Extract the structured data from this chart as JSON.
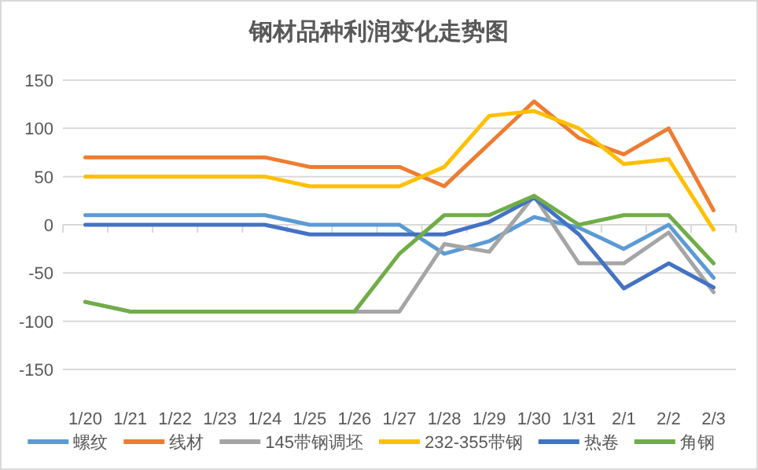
{
  "chart_data": {
    "type": "line",
    "title": "钢材品种利润变化走势图",
    "categories": [
      "1/20",
      "1/21",
      "1/22",
      "1/23",
      "1/24",
      "1/25",
      "1/26",
      "1/27",
      "1/28",
      "1/29",
      "1/30",
      "1/31",
      "2/1",
      "2/2",
      "2/3"
    ],
    "series": [
      {
        "name": "螺纹",
        "color": "#5b9bd5",
        "values": [
          10,
          10,
          10,
          10,
          10,
          0,
          0,
          0,
          -30,
          -17,
          8,
          -3,
          -25,
          0,
          -55
        ]
      },
      {
        "name": "线材",
        "color": "#ed7d31",
        "values": [
          70,
          70,
          70,
          70,
          70,
          60,
          60,
          60,
          40,
          84,
          128,
          90,
          73,
          100,
          15
        ]
      },
      {
        "name": "145带钢调坯",
        "color": "#a5a5a5",
        "values": [
          -80,
          -90,
          null,
          null,
          null,
          null,
          -90,
          -90,
          -20,
          -28,
          30,
          -40,
          -40,
          -8,
          -70
        ]
      },
      {
        "name": "232-355带钢",
        "color": "#ffc000",
        "values": [
          50,
          50,
          50,
          50,
          50,
          40,
          40,
          40,
          60,
          113,
          118,
          100,
          63,
          68,
          -5
        ]
      },
      {
        "name": "热卷",
        "color": "#4472c4",
        "values": [
          0,
          0,
          0,
          0,
          0,
          -10,
          -10,
          -10,
          -10,
          3,
          28,
          -10,
          -66,
          -40,
          -65
        ]
      },
      {
        "name": "角钢",
        "color": "#70ad47",
        "values": [
          -80,
          -90,
          -90,
          -90,
          -90,
          -90,
          -90,
          -30,
          10,
          10,
          30,
          0,
          10,
          10,
          -40
        ]
      }
    ],
    "ylim": [
      -150,
      150
    ],
    "yticks": [
      -150,
      -100,
      -50,
      0,
      50,
      100,
      150
    ],
    "grid": "y",
    "legend": "bottom",
    "marker": "none",
    "line_style": "solid"
  }
}
